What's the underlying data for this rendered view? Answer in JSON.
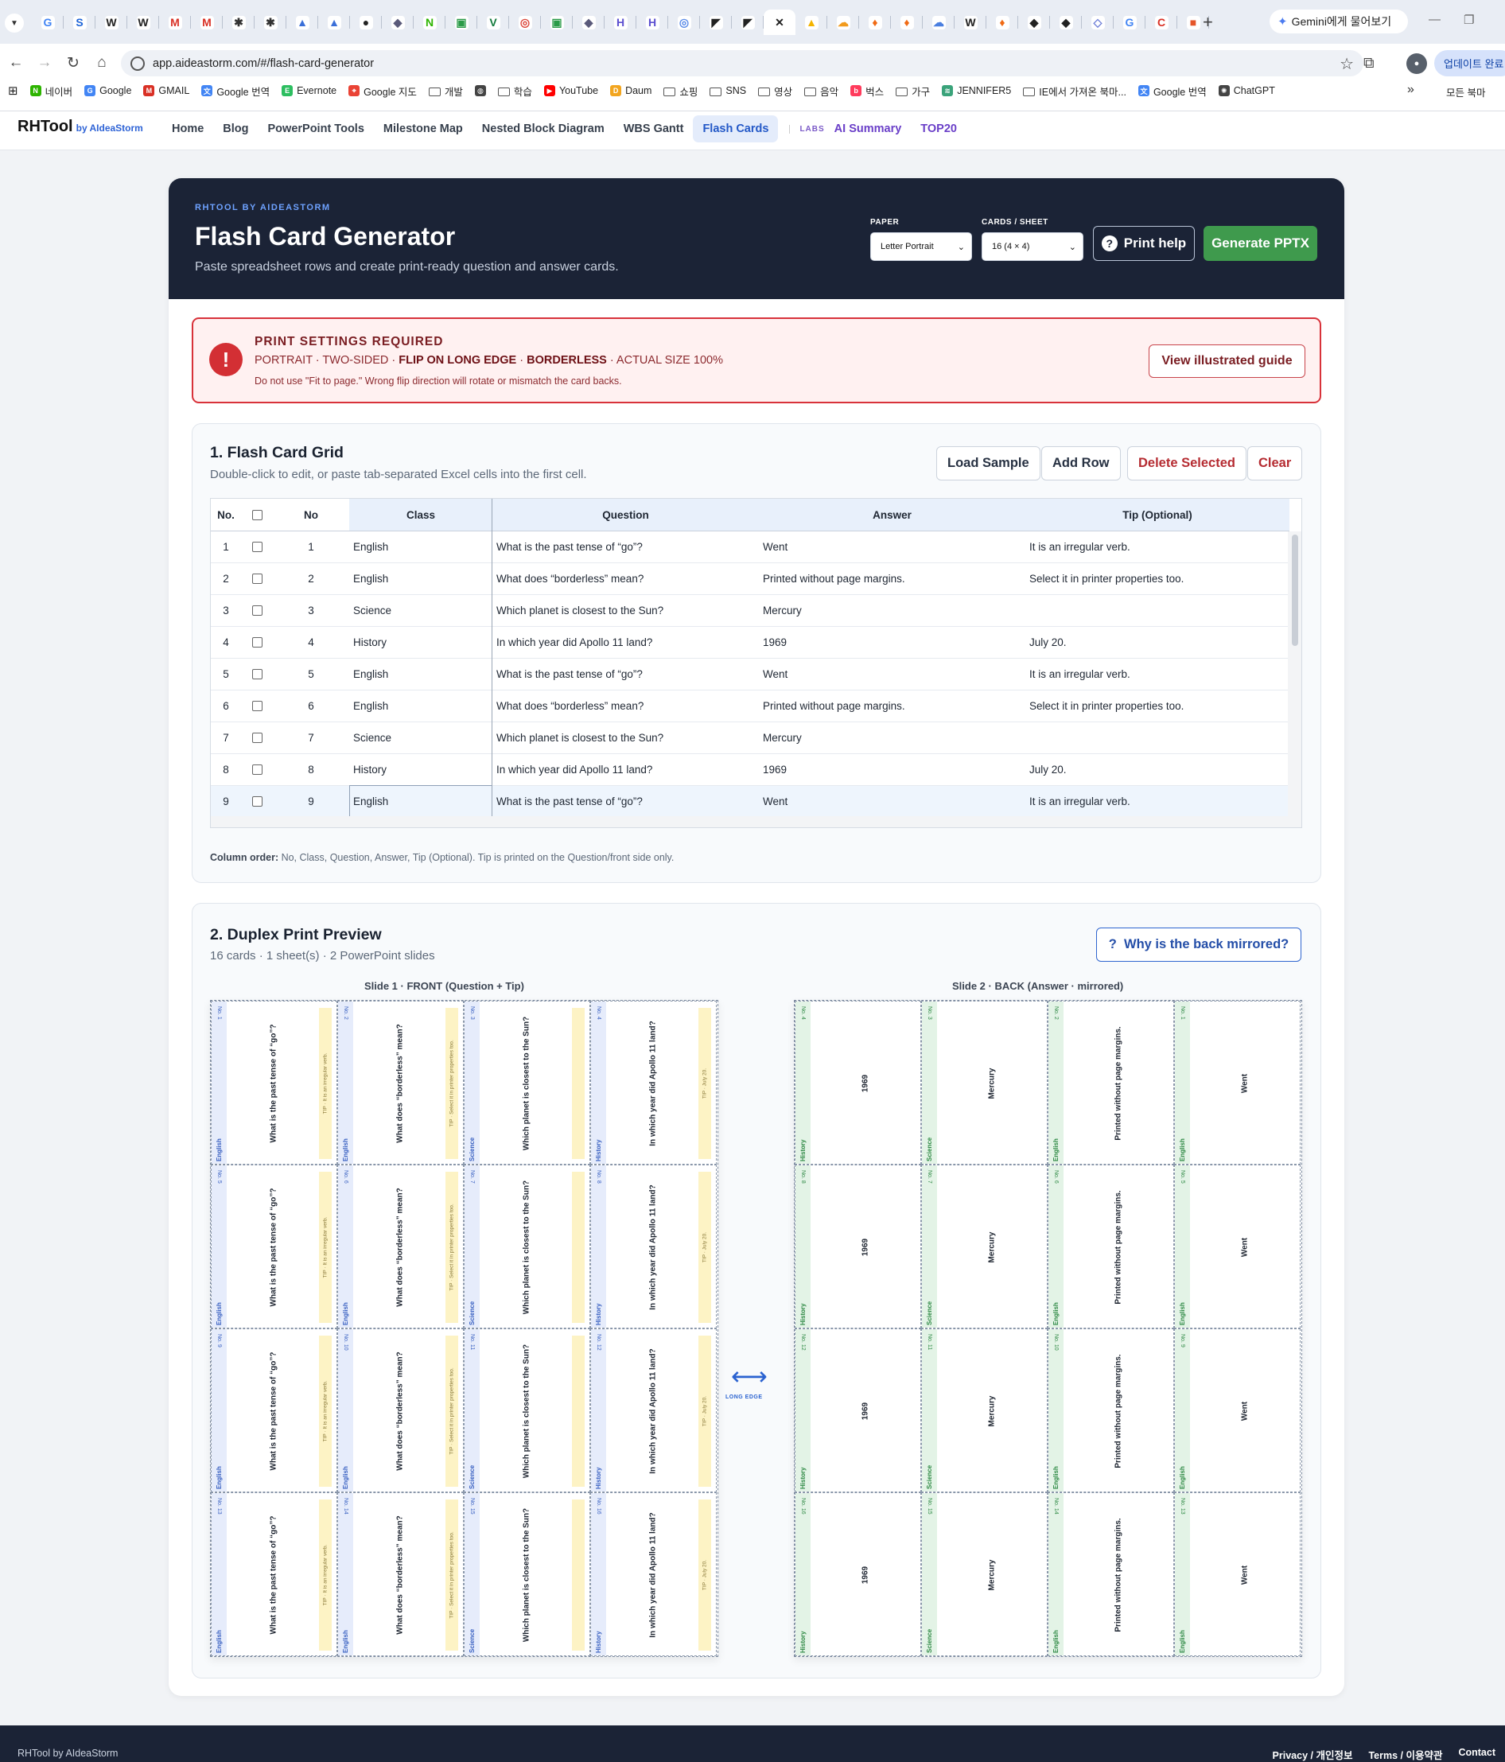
{
  "browser": {
    "tabs": [
      {
        "icon": "google-icon",
        "glyph": "G",
        "color": "#4285f4"
      },
      {
        "icon": "s-icon",
        "glyph": "S",
        "color": "#1d64d8"
      },
      {
        "icon": "w-icon",
        "glyph": "W",
        "color": "#222222"
      },
      {
        "icon": "w-icon",
        "glyph": "W",
        "color": "#222222"
      },
      {
        "icon": "gmail-icon",
        "glyph": "M",
        "color": "#d93025"
      },
      {
        "icon": "gmail-icon",
        "glyph": "M",
        "color": "#d93025"
      },
      {
        "icon": "asterisk-icon",
        "glyph": "✱",
        "color": "#333333"
      },
      {
        "icon": "asterisk-icon",
        "glyph": "✱",
        "color": "#333333"
      },
      {
        "icon": "chart-icon",
        "glyph": "▲",
        "color": "#3a6fd8"
      },
      {
        "icon": "chart-icon",
        "glyph": "▲",
        "color": "#3a6fd8"
      },
      {
        "icon": "github-icon",
        "glyph": "●",
        "color": "#222222"
      },
      {
        "icon": "shield-icon",
        "glyph": "◆",
        "color": "#5a5a7a"
      },
      {
        "icon": "n-icon",
        "glyph": "N",
        "color": "#2db400"
      },
      {
        "icon": "green-icon",
        "glyph": "▣",
        "color": "#2b9b48"
      },
      {
        "icon": "v-icon",
        "glyph": "V",
        "color": "#127a3c"
      },
      {
        "icon": "chrome-icon",
        "glyph": "◎",
        "color": "#db4437"
      },
      {
        "icon": "green-icon",
        "glyph": "▣",
        "color": "#2b9b48"
      },
      {
        "icon": "shield-icon",
        "glyph": "◆",
        "color": "#5a5a7a"
      },
      {
        "icon": "h-icon",
        "glyph": "H",
        "color": "#5b4fd0"
      },
      {
        "icon": "h-icon",
        "glyph": "H",
        "color": "#5b4fd0"
      },
      {
        "icon": "circle-icon",
        "glyph": "◎",
        "color": "#5a8be8"
      },
      {
        "icon": "flag-icon",
        "glyph": "◤",
        "color": "#222222"
      },
      {
        "icon": "flag-icon",
        "glyph": "◤",
        "color": "#222222"
      },
      {
        "icon": "close-icon",
        "glyph": "✕",
        "color": "#222222",
        "active": true
      },
      {
        "icon": "drive-icon",
        "glyph": "▲",
        "color": "#f4b400"
      },
      {
        "icon": "cloud-icon",
        "glyph": "☁",
        "color": "#f29b1d"
      },
      {
        "icon": "fire-icon",
        "glyph": "♦",
        "color": "#f06a14"
      },
      {
        "icon": "fire-icon",
        "glyph": "♦",
        "color": "#f06a14"
      },
      {
        "icon": "cloud-icon",
        "glyph": "☁",
        "color": "#4a7fe0"
      },
      {
        "icon": "w-icon",
        "glyph": "W",
        "color": "#222222"
      },
      {
        "icon": "fire-icon",
        "glyph": "♦",
        "color": "#f06a14"
      },
      {
        "icon": "shield-icon",
        "glyph": "◆",
        "color": "#222222"
      },
      {
        "icon": "shield-icon",
        "glyph": "◆",
        "color": "#222222"
      },
      {
        "icon": "diamond-icon",
        "glyph": "◇",
        "color": "#6e7fd8"
      },
      {
        "icon": "google-icon",
        "glyph": "G",
        "color": "#4285f4"
      },
      {
        "icon": "c-icon",
        "glyph": "C",
        "color": "#d93025"
      },
      {
        "icon": "ms-icon",
        "glyph": "■",
        "color": "#e5562a"
      }
    ],
    "new_tab": "+",
    "gemini_label": "Gemini에게 물어보기",
    "url": "app.aideastorm.com/#/flash-card-generator",
    "update_label": "업데이트 완료",
    "bookmarks": [
      {
        "label": "네이버",
        "icon": "naver-icon",
        "color": "#2db400",
        "glyph": "N"
      },
      {
        "label": "Google",
        "icon": "google-icon",
        "color": "#4285f4",
        "glyph": "G"
      },
      {
        "label": "GMAIL",
        "icon": "gmail-icon",
        "color": "#d93025",
        "glyph": "M"
      },
      {
        "label": "Google 번역",
        "icon": "translate-icon",
        "color": "#4285f4",
        "glyph": "文"
      },
      {
        "label": "Evernote",
        "icon": "evernote-icon",
        "color": "#2dbe60",
        "glyph": "E"
      },
      {
        "label": "Google 지도",
        "icon": "map-pin-icon",
        "color": "#ea4335",
        "glyph": "⌖"
      },
      {
        "label": "개발",
        "icon": "folder-icon",
        "folder": true
      },
      {
        "label": "",
        "icon": "globe-icon",
        "color": "#444444",
        "glyph": "◍"
      },
      {
        "label": "학습",
        "icon": "folder-icon",
        "folder": true
      },
      {
        "label": "YouTube",
        "icon": "youtube-icon",
        "color": "#ff0000",
        "glyph": "▶"
      },
      {
        "label": "Daum",
        "icon": "daum-icon",
        "color": "#f2a51f",
        "glyph": "D"
      },
      {
        "label": "쇼핑",
        "icon": "folder-icon",
        "folder": true
      },
      {
        "label": "SNS",
        "icon": "folder-icon",
        "folder": true
      },
      {
        "label": "영상",
        "icon": "folder-icon",
        "folder": true
      },
      {
        "label": "음악",
        "icon": "folder-icon",
        "folder": true
      },
      {
        "label": "벅스",
        "icon": "bugs-icon",
        "color": "#ff3b5c",
        "glyph": "b"
      },
      {
        "label": "가구",
        "icon": "folder-icon",
        "folder": true
      },
      {
        "label": "JENNIFER5",
        "icon": "layers-icon",
        "color": "#3aa37a",
        "glyph": "≋"
      },
      {
        "label": "IE에서 가져온 북마...",
        "icon": "folder-icon",
        "folder": true
      },
      {
        "label": "Google 번역",
        "icon": "translate-icon",
        "color": "#4285f4",
        "glyph": "文"
      },
      {
        "label": "ChatGPT",
        "icon": "chatgpt-icon",
        "color": "#444444",
        "glyph": "✺"
      }
    ],
    "bookmarks_more": "»",
    "all_bookmarks": "모든 북마"
  },
  "site": {
    "brand": "RHTool",
    "brand_by": "by AIdeaStorm",
    "nav": [
      "Home",
      "Blog",
      "PowerPoint Tools",
      "Milestone Map",
      "Nested Block Diagram",
      "WBS Gantt",
      "Flash Cards"
    ],
    "nav_active": "Flash Cards",
    "labs_label": "LABS",
    "labs": [
      "AI Summary",
      "TOP20"
    ]
  },
  "hero": {
    "eyebrow": "RHTOOL BY AIDEASTORM",
    "title": "Flash Card Generator",
    "subtitle": "Paste spreadsheet rows and create print-ready question and answer cards.",
    "paper_label": "PAPER",
    "paper_value": "Letter Portrait",
    "cards_label": "CARDS / SHEET",
    "cards_value": "16 (4 × 4)",
    "print_help": "Print help",
    "generate": "Generate PPTX"
  },
  "warning": {
    "title": "PRINT SETTINGS REQUIRED",
    "p1": "PORTRAIT · TWO-SIDED · ",
    "p2": "FLIP ON LONG EDGE",
    "p3": " · ",
    "p4": "BORDERLESS",
    "p5": " · ACTUAL SIZE 100%",
    "note": "Do not use \"Fit to page.\" Wrong flip direction will rotate or mismatch the card backs.",
    "guide_button": "View illustrated guide"
  },
  "grid_panel": {
    "title": "1. Flash Card Grid",
    "subtitle": "Double-click to edit, or paste tab-separated Excel cells into the first cell.",
    "buttons": {
      "load": "Load Sample",
      "add": "Add Row",
      "delete": "Delete Selected",
      "clear": "Clear"
    },
    "headers": {
      "no": "No.",
      "no2": "No",
      "cls": "Class",
      "q": "Question",
      "a": "Answer",
      "tip": "Tip (Optional)"
    },
    "rows": [
      {
        "no": "1",
        "no2": "1",
        "cls": "English",
        "q": "What is the past tense of “go”?",
        "a": "Went",
        "tip": "It is an irregular verb."
      },
      {
        "no": "2",
        "no2": "2",
        "cls": "English",
        "q": "What does “borderless” mean?",
        "a": "Printed without page margins.",
        "tip": "Select it in printer properties too."
      },
      {
        "no": "3",
        "no2": "3",
        "cls": "Science",
        "q": "Which planet is closest to the Sun?",
        "a": "Mercury",
        "tip": ""
      },
      {
        "no": "4",
        "no2": "4",
        "cls": "History",
        "q": "In which year did Apollo 11 land?",
        "a": "1969",
        "tip": "July 20."
      },
      {
        "no": "5",
        "no2": "5",
        "cls": "English",
        "q": "What is the past tense of “go”?",
        "a": "Went",
        "tip": "It is an irregular verb."
      },
      {
        "no": "6",
        "no2": "6",
        "cls": "English",
        "q": "What does “borderless” mean?",
        "a": "Printed without page margins.",
        "tip": "Select it in printer properties too."
      },
      {
        "no": "7",
        "no2": "7",
        "cls": "Science",
        "q": "Which planet is closest to the Sun?",
        "a": "Mercury",
        "tip": ""
      },
      {
        "no": "8",
        "no2": "8",
        "cls": "History",
        "q": "In which year did Apollo 11 land?",
        "a": "1969",
        "tip": "July 20."
      },
      {
        "no": "9",
        "no2": "9",
        "cls": "English",
        "q": "What is the past tense of “go”?",
        "a": "Went",
        "tip": "It is an irregular verb."
      }
    ],
    "column_order_label": "Column order:",
    "column_order_text": " No, Class, Question, Answer, Tip (Optional). Tip is printed on the Question/front side only."
  },
  "preview_panel": {
    "title": "2. Duplex Print Preview",
    "subtitle": "16 cards · 1 sheet(s) · 2 PowerPoint slides",
    "why_button": "Why is the back mirrored?",
    "front_label": "Slide 1 · FRONT (Question + Tip)",
    "back_label": "Slide 2 · BACK (Answer · mirrored)",
    "flip_label": "LONG EDGE",
    "front_columns": [
      {
        "cls": "English",
        "q": "What is the past tense of “go”?",
        "tip": "TIP · It is an irregular verb."
      },
      {
        "cls": "English",
        "q": "What does “borderless” mean?",
        "tip": "TIP · Select it in printer properties too."
      },
      {
        "cls": "Science",
        "q": "Which planet is closest to the Sun?",
        "tip": ""
      },
      {
        "cls": "History",
        "q": "In which year did Apollo 11 land?",
        "tip": "TIP · July 20."
      }
    ],
    "back_columns": [
      {
        "cls": "History",
        "a": "1969"
      },
      {
        "cls": "Science",
        "a": "Mercury"
      },
      {
        "cls": "English",
        "a": "Printed without page margins."
      },
      {
        "cls": "English",
        "a": "Went"
      }
    ],
    "front_numbers": [
      [
        "No. 1",
        "No. 2",
        "No. 3",
        "No. 4"
      ],
      [
        "No. 5",
        "No. 6",
        "No. 7",
        "No. 8"
      ],
      [
        "No. 9",
        "No. 10",
        "No. 11",
        "No. 12"
      ],
      [
        "No. 13",
        "No. 14",
        "No. 15",
        "No. 16"
      ]
    ],
    "back_numbers": [
      [
        "No. 4",
        "No. 3",
        "No. 2",
        "No. 1"
      ],
      [
        "No. 8",
        "No. 7",
        "No. 6",
        "No. 5"
      ],
      [
        "No. 12",
        "No. 11",
        "No. 10",
        "No. 9"
      ],
      [
        "No. 16",
        "No. 15",
        "No. 14",
        "No. 13"
      ]
    ]
  },
  "colors": {
    "front_strip": "#e6ecfb",
    "front_text": "#3b62c2",
    "back_strip": "#e3f3e6",
    "back_text": "#2f8a45",
    "tip_strip": "#fdf3c5"
  },
  "footer": {
    "left": "RHTool by AIdeaStorm",
    "links": [
      "Privacy / 개인정보",
      "Terms / 이용약관",
      "Contact"
    ]
  }
}
